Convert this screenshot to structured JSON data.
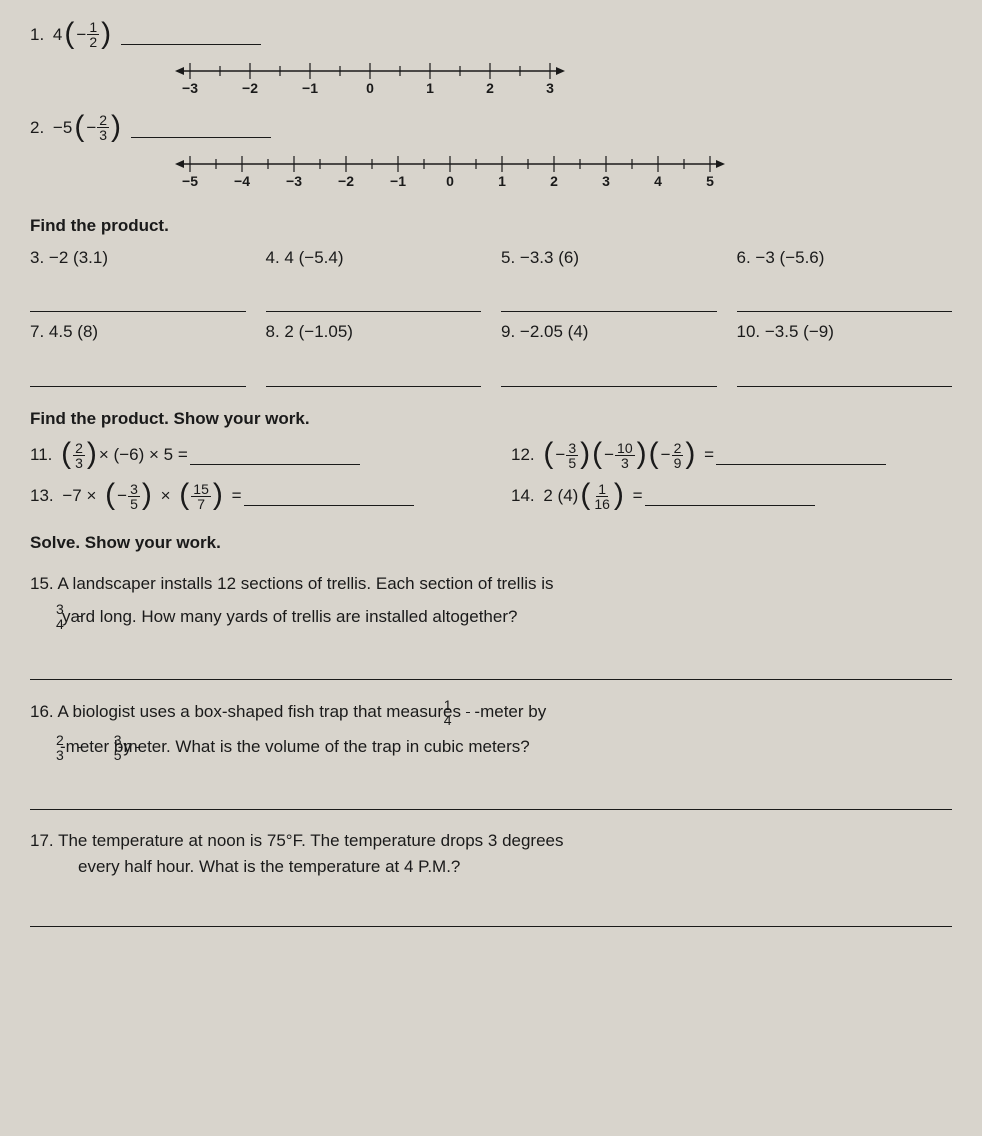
{
  "q1": {
    "num": "1.",
    "coef": "4",
    "neg": "−",
    "frac_n": "1",
    "frac_d": "2"
  },
  "numline1": {
    "start": -3,
    "end": 3,
    "halves": true
  },
  "q2": {
    "num": "2.",
    "coef": "−5",
    "neg": "−",
    "frac_n": "2",
    "frac_d": "3"
  },
  "numline2": {
    "start": -5,
    "end": 5,
    "halves": true
  },
  "findProduct": "Find the product.",
  "grid": [
    {
      "n": "3.",
      "t": "−2 (3.1)"
    },
    {
      "n": "4.",
      "t": "4 (−5.4)"
    },
    {
      "n": "5.",
      "t": "−3.3 (6)"
    },
    {
      "n": "6.",
      "t": "−3 (−5.6)"
    },
    {
      "n": "7.",
      "t": "4.5 (8)"
    },
    {
      "n": "8.",
      "t": "2 (−1.05)"
    },
    {
      "n": "9.",
      "t": "−2.05 (4)"
    },
    {
      "n": "10.",
      "t": "−3.5 (−9)"
    }
  ],
  "findProductShow": "Find the product. Show your work.",
  "q11": {
    "n": "11.",
    "f1n": "2",
    "f1d": "3",
    "mid": "× (−6) × 5 ="
  },
  "q12": {
    "n": "12.",
    "a_n": "3",
    "a_d": "5",
    "b_n": "10",
    "b_d": "3",
    "c_n": "2",
    "c_d": "9",
    "eq": "="
  },
  "q13": {
    "n": "13.",
    "lead": "−7 ×",
    "a_n": "3",
    "a_d": "5",
    "times": "×",
    "b_n": "15",
    "b_d": "7",
    "eq": "="
  },
  "q14": {
    "n": "14.",
    "lead": "2 (4)",
    "a_n": "1",
    "a_d": "16",
    "eq": "="
  },
  "solveHead": "Solve. Show your work.",
  "q15": {
    "n": "15.",
    "line1": "A landscaper installs 12 sections of trellis. Each section of trellis is",
    "frac_n": "3",
    "frac_d": "4",
    "line2a": "yard long. How many yards of trellis are installed altogether?"
  },
  "q16": {
    "n": "16.",
    "line1a": "A biologist uses a box-shaped fish trap that measures",
    "f1n": "1",
    "f1d": "4",
    "line1b": "-meter by",
    "f2n": "2",
    "f2d": "3",
    "mid": "-meter by",
    "f3n": "3",
    "f3d": "5",
    "line2b": "-meter. What is the volume of the trap in cubic meters?"
  },
  "q17": {
    "n": "17.",
    "line1": "The temperature at noon is 75°F. The temperature drops 3 degrees",
    "line2": "every half hour. What is the temperature at 4 P.M.?"
  }
}
